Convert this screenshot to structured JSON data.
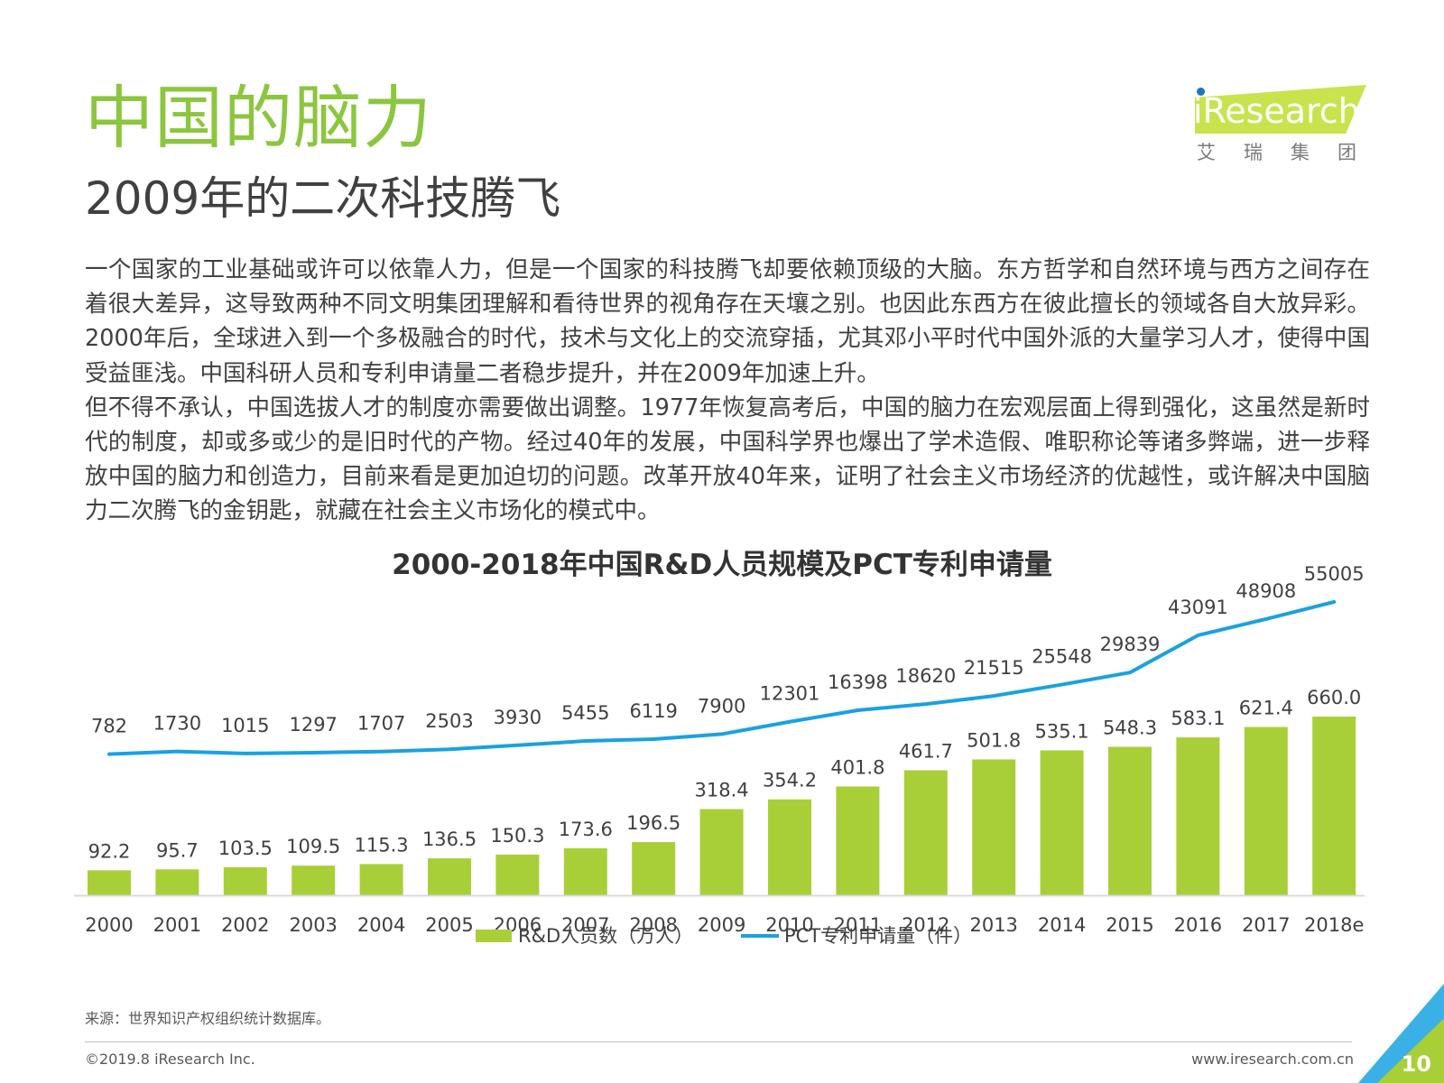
{
  "header": {
    "title": "中国的脑力",
    "subtitle": "2009年的二次科技腾飞"
  },
  "logo": {
    "brand": "iResearch",
    "sub": "艾瑞集团"
  },
  "body": {
    "paragraph1": "一个国家的工业基础或许可以依靠人力，但是一个国家的科技腾飞却要依赖顶级的大脑。东方哲学和自然环境与西方之间存在着很大差异，这导致两种不同文明集团理解和看待世界的视角存在天壤之别。也因此东西方在彼此擅长的领域各自大放异彩。2000年后，全球进入到一个多极融合的时代，技术与文化上的交流穿插，尤其邓小平时代中国外派的大量学习人才，使得中国受益匪浅。中国科研人员和专利申请量二者稳步提升，并在2009年加速上升。",
    "paragraph2": "但不得不承认，中国选拔人才的制度亦需要做出调整。1977年恢复高考后，中国的脑力在宏观层面上得到强化，这虽然是新时代的制度，却或多或少的是旧时代的产物。经过40年的发展，中国科学界也爆出了学术造假、唯职称论等诸多弊端，进一步释放中国的脑力和创造力，目前来看是更加迫切的问题。改革开放40年来，证明了社会主义市场经济的优越性，或许解决中国脑力二次腾飞的金钥匙，就藏在社会主义市场化的模式中。"
  },
  "chart_data": {
    "type": "bar",
    "title": "2000-2018年中国R&D人员规模及PCT专利申请量",
    "categories": [
      "2000",
      "2001",
      "2002",
      "2003",
      "2004",
      "2005",
      "2006",
      "2007",
      "2008",
      "2009",
      "2010",
      "2011",
      "2012",
      "2013",
      "2014",
      "2015",
      "2016",
      "2017",
      "2018e"
    ],
    "series": [
      {
        "name": "R&D人员数（万人）",
        "type": "bar",
        "color": "#a9cf38",
        "values": [
          92.2,
          95.7,
          103.5,
          109.5,
          115.3,
          136.5,
          150.3,
          173.6,
          196.5,
          318.4,
          354.2,
          401.8,
          461.7,
          501.8,
          535.1,
          548.3,
          583.1,
          621.4,
          660.0
        ],
        "labels": [
          "92.2",
          "95.7",
          "103.5",
          "109.5",
          "115.3",
          "136.5",
          "150.3",
          "173.6",
          "196.5",
          "318.4",
          "354.2",
          "401.8",
          "461.7",
          "501.8",
          "535.1",
          "548.3",
          "583.1",
          "621.4",
          "660.0"
        ]
      },
      {
        "name": "PCT专利申请量（件）",
        "type": "line",
        "color": "#1aa1e0",
        "values": [
          782,
          1730,
          1015,
          1297,
          1707,
          2503,
          3930,
          5455,
          6119,
          7900,
          12301,
          16398,
          18620,
          21515,
          25548,
          29839,
          43091,
          48908,
          55005
        ],
        "labels": [
          "782",
          "1730",
          "1015",
          "1297",
          "1707",
          "2503",
          "3930",
          "5455",
          "6119",
          "7900",
          "12301",
          "16398",
          "18620",
          "21515",
          "25548",
          "29839",
          "43091",
          "48908",
          "55005"
        ]
      }
    ],
    "legend_position": "bottom",
    "grid": false
  },
  "source": "来源：世界知识产权组织统计数据库。",
  "footer": {
    "copyright": "©2019.8 iResearch Inc.",
    "website": "www.iresearch.com.cn",
    "page_number": "10"
  }
}
